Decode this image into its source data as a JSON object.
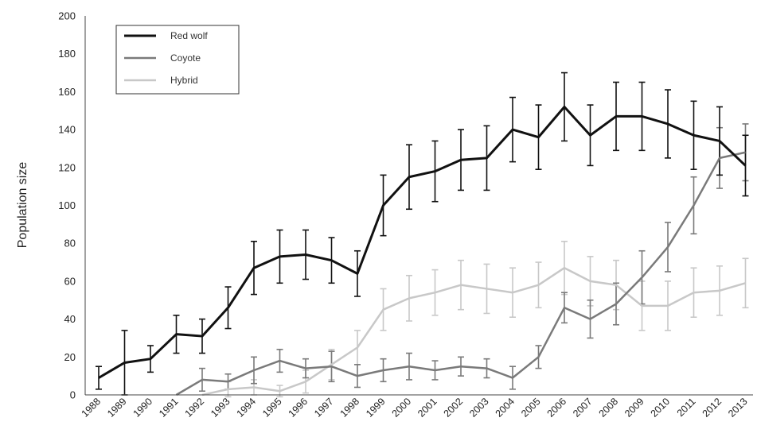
{
  "chart_data": {
    "type": "line",
    "title": "",
    "xlabel": "",
    "ylabel": "Population size",
    "ylim": [
      0,
      200
    ],
    "yticks": [
      0,
      20,
      40,
      60,
      80,
      100,
      120,
      140,
      160,
      180,
      200
    ],
    "categories": [
      "1988",
      "1989",
      "1990",
      "1991",
      "1992",
      "1993",
      "1994",
      "1995",
      "1996",
      "1997",
      "1998",
      "1999",
      "2000",
      "2001",
      "2002",
      "2003",
      "2004",
      "2005",
      "2006",
      "2007",
      "2008",
      "2009",
      "2010",
      "2011",
      "2012",
      "2013"
    ],
    "legend_position": "top-left",
    "grid": false,
    "series": [
      {
        "name": "Red wolf",
        "color": "#111111",
        "values": [
          9,
          17,
          19,
          32,
          31,
          46,
          67,
          73,
          74,
          71,
          64,
          100,
          115,
          118,
          124,
          125,
          140,
          136,
          152,
          137,
          147,
          147,
          143,
          137,
          134,
          121
        ],
        "errors": [
          6,
          17,
          7,
          10,
          9,
          11,
          14,
          14,
          13,
          12,
          12,
          16,
          17,
          16,
          16,
          17,
          17,
          17,
          18,
          16,
          18,
          18,
          18,
          18,
          18,
          16
        ]
      },
      {
        "name": "Coyote",
        "color": "#7a7a7a",
        "values": [
          null,
          null,
          null,
          0,
          8,
          7,
          13,
          18,
          14,
          15,
          10,
          13,
          15,
          13,
          15,
          14,
          9,
          20,
          46,
          40,
          48,
          62,
          78,
          100,
          125,
          128
        ],
        "errors": [
          null,
          null,
          null,
          0,
          6,
          4,
          7,
          6,
          5,
          8,
          6,
          6,
          7,
          5,
          5,
          5,
          6,
          6,
          8,
          10,
          11,
          14,
          13,
          15,
          16,
          15
        ]
      },
      {
        "name": "Hybrid",
        "color": "#c8c8c8",
        "values": [
          null,
          null,
          null,
          null,
          0,
          3,
          4,
          2,
          7,
          16,
          25,
          45,
          51,
          54,
          58,
          56,
          54,
          58,
          67,
          60,
          58,
          47,
          47,
          54,
          55,
          59
        ],
        "errors": [
          null,
          null,
          null,
          null,
          0,
          4,
          4,
          3,
          6,
          8,
          9,
          11,
          12,
          12,
          13,
          13,
          13,
          12,
          14,
          13,
          13,
          13,
          13,
          13,
          13,
          13
        ]
      }
    ]
  }
}
